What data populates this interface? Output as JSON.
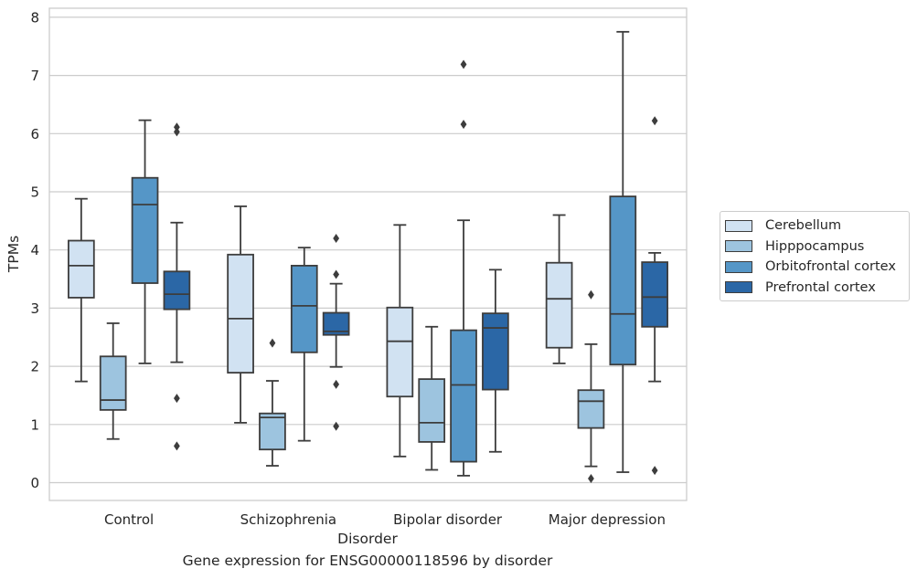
{
  "chart_data": {
    "type": "box",
    "title": "",
    "caption": "Gene expression for ENSG00000118596 by disorder",
    "xlabel": "Disorder",
    "ylabel": "TPMs",
    "ylim": [
      -0.3,
      8.15
    ],
    "yticks": [
      0,
      1,
      2,
      3,
      4,
      5,
      6,
      7,
      8
    ],
    "grid": "horizontal",
    "legend_position": "right",
    "categories": [
      "Control",
      "Schizophrenia",
      "Bipolar disorder",
      "Major depression"
    ],
    "series": [
      {
        "name": "Cerebellum",
        "color": "#d1e2f2",
        "boxes": [
          {
            "whisker_low": 1.74,
            "q1": 3.18,
            "median": 3.73,
            "q3": 4.16,
            "whisker_high": 4.88,
            "outliers": []
          },
          {
            "whisker_low": 1.03,
            "q1": 1.89,
            "median": 2.82,
            "q3": 3.92,
            "whisker_high": 4.75,
            "outliers": []
          },
          {
            "whisker_low": 0.45,
            "q1": 1.48,
            "median": 2.43,
            "q3": 3.01,
            "whisker_high": 4.43,
            "outliers": []
          },
          {
            "whisker_low": 2.05,
            "q1": 2.32,
            "median": 3.16,
            "q3": 3.78,
            "whisker_high": 4.6,
            "outliers": []
          }
        ]
      },
      {
        "name": "Hipppocampus",
        "color": "#9dc4df",
        "boxes": [
          {
            "whisker_low": 0.75,
            "q1": 1.25,
            "median": 1.42,
            "q3": 2.17,
            "whisker_high": 2.74,
            "outliers": []
          },
          {
            "whisker_low": 0.29,
            "q1": 0.57,
            "median": 1.12,
            "q3": 1.19,
            "whisker_high": 1.75,
            "outliers": [
              2.4
            ]
          },
          {
            "whisker_low": 0.22,
            "q1": 0.7,
            "median": 1.03,
            "q3": 1.78,
            "whisker_high": 2.68,
            "outliers": []
          },
          {
            "whisker_low": 0.28,
            "q1": 0.94,
            "median": 1.4,
            "q3": 1.59,
            "whisker_high": 2.38,
            "outliers": [
              0.07,
              3.23
            ]
          }
        ]
      },
      {
        "name": "Orbitofrontal cortex",
        "color": "#5596c7",
        "boxes": [
          {
            "whisker_low": 2.05,
            "q1": 3.43,
            "median": 4.78,
            "q3": 5.24,
            "whisker_high": 6.23,
            "outliers": []
          },
          {
            "whisker_low": 0.72,
            "q1": 2.24,
            "median": 3.04,
            "q3": 3.73,
            "whisker_high": 4.04,
            "outliers": []
          },
          {
            "whisker_low": 0.12,
            "q1": 0.36,
            "median": 1.68,
            "q3": 2.62,
            "whisker_high": 4.51,
            "outliers": [
              6.16,
              7.19
            ]
          },
          {
            "whisker_low": 0.18,
            "q1": 2.03,
            "median": 2.9,
            "q3": 4.92,
            "whisker_high": 7.75,
            "outliers": []
          }
        ]
      },
      {
        "name": "Prefrontal cortex",
        "color": "#2b67a6",
        "boxes": [
          {
            "whisker_low": 2.07,
            "q1": 2.98,
            "median": 3.24,
            "q3": 3.63,
            "whisker_high": 4.47,
            "outliers": [
              0.63,
              1.45,
              6.03,
              6.11
            ]
          },
          {
            "whisker_low": 1.99,
            "q1": 2.54,
            "median": 2.6,
            "q3": 2.92,
            "whisker_high": 3.42,
            "outliers": [
              0.97,
              1.69,
              3.58,
              4.2
            ]
          },
          {
            "whisker_low": 0.53,
            "q1": 1.6,
            "median": 2.66,
            "q3": 2.91,
            "whisker_high": 3.66,
            "outliers": []
          },
          {
            "whisker_low": 1.74,
            "q1": 2.68,
            "median": 3.19,
            "q3": 3.79,
            "whisker_high": 3.95,
            "outliers": [
              0.21,
              6.22
            ]
          }
        ]
      }
    ]
  }
}
